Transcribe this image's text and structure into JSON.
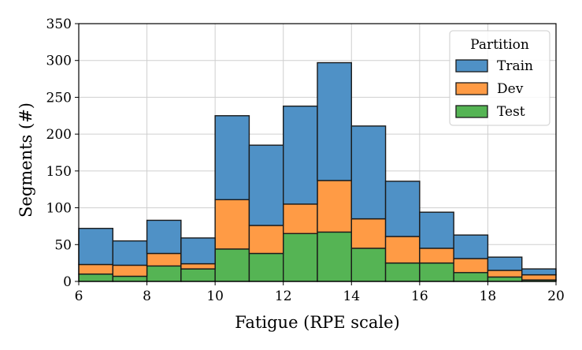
{
  "chart_data": {
    "type": "bar",
    "stacked": true,
    "xlabel": "Fatigue (RPE scale)",
    "ylabel": "Segments (#)",
    "xlim": [
      6,
      20
    ],
    "ylim": [
      0,
      350
    ],
    "xticks": [
      6,
      8,
      10,
      12,
      14,
      16,
      18,
      20
    ],
    "yticks": [
      0,
      50,
      100,
      150,
      200,
      250,
      300,
      350
    ],
    "grid": true,
    "bin_edges": [
      6,
      7,
      8,
      9,
      10,
      11,
      12,
      13,
      14,
      15,
      16,
      17,
      18,
      19,
      20
    ],
    "legend": {
      "title": "Partition",
      "position": "top-right"
    },
    "series": [
      {
        "name": "Test",
        "color": "#55b454",
        "values": [
          10,
          7,
          21,
          17,
          44,
          38,
          65,
          67,
          45,
          25,
          25,
          12,
          6,
          2
        ]
      },
      {
        "name": "Dev",
        "color": "#ff9b45",
        "values": [
          13,
          15,
          17,
          7,
          67,
          38,
          40,
          70,
          40,
          36,
          20,
          19,
          9,
          7
        ]
      },
      {
        "name": "Train",
        "color": "#4f91c6",
        "values": [
          49,
          33,
          45,
          35,
          114,
          109,
          133,
          160,
          126,
          75,
          49,
          32,
          18,
          8
        ]
      }
    ],
    "legend_order": [
      "Train",
      "Dev",
      "Test"
    ]
  }
}
